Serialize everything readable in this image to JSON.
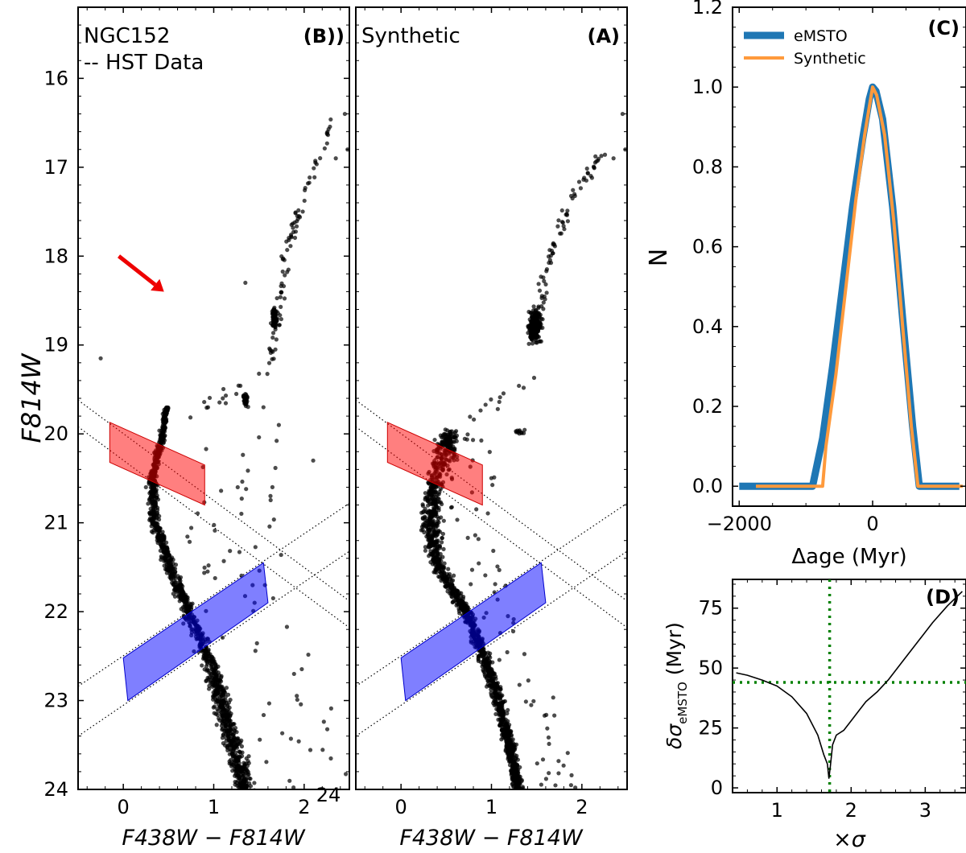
{
  "chart_data": [
    {
      "id": "B",
      "type": "scatter",
      "panel_label": "(B))",
      "annotation_lines": [
        "NGC152",
        "-- HST Data"
      ],
      "xlabel": "F438W − F814W",
      "ylabel": "F814W",
      "xlim": [
        -0.5,
        2.5
      ],
      "ylim": [
        24,
        15.2
      ],
      "y_inverted": true,
      "xticks": [
        0,
        1,
        2
      ],
      "xtick_labels": [
        "0",
        "1",
        "2"
      ],
      "yticks": [
        16,
        17,
        18,
        19,
        20,
        21,
        22,
        23,
        24
      ],
      "ytick_labels": [
        "16",
        "17",
        "18",
        "19",
        "20",
        "21",
        "22",
        "23",
        "24"
      ],
      "stray_label": "24",
      "red_box": [
        [
          -0.15,
          19.87
        ],
        [
          0.9,
          20.35
        ],
        [
          0.9,
          20.8
        ],
        [
          -0.15,
          20.32
        ]
      ],
      "blue_box": [
        [
          0.0,
          22.52
        ],
        [
          1.55,
          21.45
        ],
        [
          1.6,
          21.9
        ],
        [
          0.05,
          23.0
        ]
      ],
      "dotted_lines": [
        [
          [
            -0.5,
            19.62
          ],
          [
            2.5,
            21.88
          ]
        ],
        [
          [
            -0.5,
            19.92
          ],
          [
            2.5,
            22.18
          ]
        ],
        [
          [
            -0.5,
            22.84
          ],
          [
            2.5,
            20.78
          ]
        ],
        [
          [
            -0.5,
            23.4
          ],
          [
            2.5,
            21.32
          ]
        ]
      ],
      "arrow": {
        "from": [
          -0.05,
          18.0
        ],
        "to": [
          0.45,
          18.4
        ],
        "color": "#ee0000"
      },
      "point_color": "#000000"
    },
    {
      "id": "A",
      "type": "scatter",
      "panel_label": "(A)",
      "annotation_lines": [
        "Synthetic"
      ],
      "xlabel": "F438W − F814W",
      "xlim": [
        -0.5,
        2.5
      ],
      "ylim": [
        24,
        15.2
      ],
      "y_inverted": true,
      "xticks": [
        0,
        1,
        2
      ],
      "xtick_labels": [
        "0",
        "1",
        "2"
      ],
      "red_box": [
        [
          -0.15,
          19.87
        ],
        [
          0.9,
          20.35
        ],
        [
          0.9,
          20.8
        ],
        [
          -0.15,
          20.32
        ]
      ],
      "blue_box": [
        [
          0.0,
          22.52
        ],
        [
          1.55,
          21.45
        ],
        [
          1.6,
          21.9
        ],
        [
          0.05,
          23.0
        ]
      ],
      "dotted_lines": [
        [
          [
            -0.5,
            19.62
          ],
          [
            2.5,
            21.88
          ]
        ],
        [
          [
            -0.5,
            19.92
          ],
          [
            2.5,
            22.18
          ]
        ],
        [
          [
            -0.5,
            22.84
          ],
          [
            2.5,
            20.78
          ]
        ],
        [
          [
            -0.5,
            23.4
          ],
          [
            2.5,
            21.32
          ]
        ]
      ],
      "point_color": "#000000"
    },
    {
      "id": "C",
      "type": "line",
      "panel_label": "(C)",
      "xlabel": "Δage (Myr)",
      "ylabel": "N",
      "xlim": [
        -2100,
        1400
      ],
      "ylim": [
        -0.05,
        1.2
      ],
      "xticks": [
        -2000,
        0
      ],
      "xtick_labels": [
        "−2000",
        "0"
      ],
      "yticks": [
        0.0,
        0.2,
        0.4,
        0.6,
        0.8,
        1.0,
        1.2
      ],
      "ytick_labels": [
        "0.0",
        "0.2",
        "0.4",
        "0.6",
        "0.8",
        "1.0",
        "1.2"
      ],
      "legend_position": "top-left",
      "series": [
        {
          "name": "eMSTO",
          "color": "#1f77b4",
          "width": 9,
          "x": [
            -2000,
            -900,
            -750,
            -600,
            -450,
            -300,
            -150,
            -50,
            0,
            50,
            150,
            300,
            450,
            600,
            700,
            1300
          ],
          "y": [
            0.0,
            0.0,
            0.12,
            0.3,
            0.5,
            0.7,
            0.87,
            0.97,
            1.0,
            0.99,
            0.92,
            0.7,
            0.42,
            0.15,
            0.0,
            0.0
          ]
        },
        {
          "name": "Synthetic",
          "color": "#ff9a3c",
          "width": 4,
          "x": [
            -1750,
            -750,
            -700,
            -550,
            -400,
            -250,
            -120,
            -30,
            0,
            60,
            180,
            320,
            450,
            580,
            680,
            1350
          ],
          "y": [
            0.0,
            0.0,
            0.1,
            0.28,
            0.5,
            0.72,
            0.88,
            0.97,
            1.0,
            0.98,
            0.88,
            0.66,
            0.4,
            0.15,
            0.0,
            0.0
          ]
        }
      ]
    },
    {
      "id": "D",
      "type": "line",
      "panel_label": "(D)",
      "xlabel": "×σ",
      "ylabel": "δσeMSTO (Myr)",
      "ylabel_main": "δσ",
      "ylabel_sub": "eMSTO",
      "ylabel_rest": " (Myr)",
      "xlim": [
        0.4,
        3.55
      ],
      "ylim": [
        -2,
        87
      ],
      "xticks": [
        1,
        2,
        3
      ],
      "xtick_labels": [
        "1",
        "2",
        "3"
      ],
      "yticks": [
        0,
        25,
        50,
        75
      ],
      "ytick_labels": [
        "0",
        "25",
        "50",
        "75"
      ],
      "vline_x": 1.71,
      "hline_y": 44,
      "guide_color": "#008000",
      "series": [
        {
          "name": "curve",
          "color": "#000000",
          "width": 1.6,
          "x": [
            0.45,
            0.6,
            0.8,
            1.0,
            1.2,
            1.4,
            1.55,
            1.63,
            1.68,
            1.7,
            1.72,
            1.75,
            1.8,
            1.9,
            2.0,
            2.1,
            2.2,
            2.35,
            2.5,
            2.7,
            2.9,
            3.1,
            3.3,
            3.5
          ],
          "y": [
            48,
            47,
            45,
            42.5,
            38,
            31,
            22,
            14,
            10,
            4,
            9,
            18,
            22,
            24,
            28,
            32,
            36,
            40,
            45,
            53,
            61,
            69,
            76,
            82
          ]
        }
      ]
    }
  ]
}
